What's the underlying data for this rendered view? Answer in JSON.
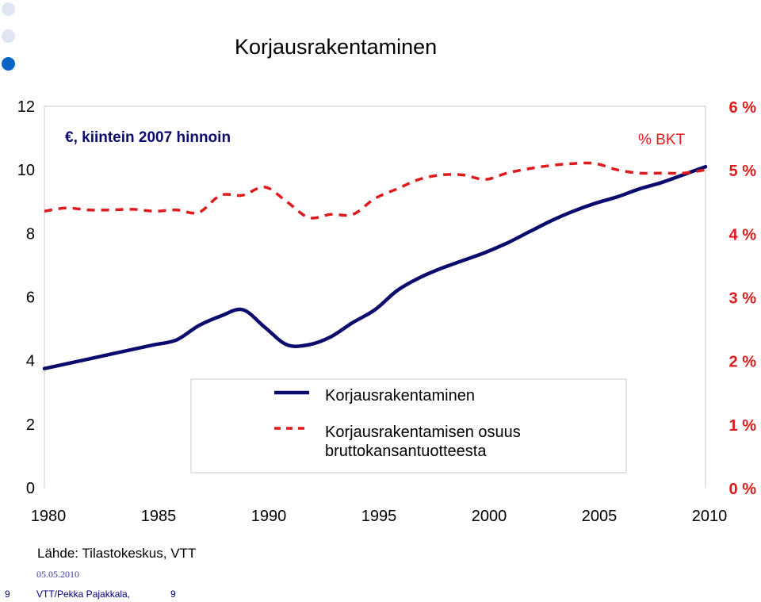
{
  "page": {
    "title": "Korjausrakentaminen",
    "source": "Lähde: Tilastokeskus, VTT",
    "date": "05.05.2010",
    "slide_number": "9",
    "author": "VTT/Pekka Pajakkala,",
    "author_page": "9"
  },
  "colors": {
    "primary_line": "#0b0b6e",
    "secondary_line": "#e0191b",
    "dot_light": "#dfe6f2",
    "dot_dark": "#0a64c8"
  },
  "chart_data": {
    "type": "line",
    "x": [
      1980,
      1981,
      1982,
      1983,
      1984,
      1985,
      1986,
      1987,
      1988,
      1989,
      1990,
      1991,
      1992,
      1993,
      1994,
      1995,
      1996,
      1997,
      1998,
      1999,
      2000,
      2001,
      2002,
      2003,
      2004,
      2005,
      2006,
      2007,
      2008,
      2009,
      2010
    ],
    "xlim": [
      1980,
      2010
    ],
    "x_ticks": [
      "1980",
      "1985",
      "1990",
      "1995",
      "2000",
      "2005",
      "2010"
    ],
    "y_left_ticks": [
      "0",
      "2",
      "4",
      "6",
      "8",
      "10",
      "12"
    ],
    "y_left_lim": [
      0,
      12
    ],
    "y_left_label": "€, kiintein 2007 hinnoin",
    "y_right_ticks": [
      "0 %",
      "1 %",
      "2 %",
      "3 %",
      "4 %",
      "5 %",
      "6 %"
    ],
    "y_right_lim": [
      0,
      6
    ],
    "y_right_label": "% BKT",
    "series": [
      {
        "name": "Korjausrakentaminen",
        "axis": "left",
        "style": "solid",
        "color": "#0b0b6e",
        "values": [
          3.75,
          3.9,
          4.05,
          4.2,
          4.35,
          4.5,
          4.65,
          5.1,
          5.4,
          5.6,
          5.05,
          4.5,
          4.5,
          4.75,
          5.2,
          5.6,
          6.2,
          6.6,
          6.9,
          7.15,
          7.4,
          7.7,
          8.05,
          8.4,
          8.7,
          8.95,
          9.15,
          9.4,
          9.6,
          9.85,
          10.1
        ]
      },
      {
        "name": "Korjausrakentamisen osuus bruttokansantuotteesta",
        "axis": "right",
        "style": "dashed",
        "color": "#e0191b",
        "values": [
          4.35,
          4.4,
          4.37,
          4.37,
          4.38,
          4.35,
          4.37,
          4.33,
          4.6,
          4.6,
          4.73,
          4.5,
          4.25,
          4.3,
          4.3,
          4.55,
          4.7,
          4.85,
          4.92,
          4.92,
          4.85,
          4.95,
          5.02,
          5.07,
          5.1,
          5.1,
          5.0,
          4.95,
          4.95,
          4.95,
          5.0
        ]
      }
    ],
    "legend": {
      "position": "bottom-center",
      "entries": [
        "Korjausrakentaminen",
        "Korjausrakentamisen osuus",
        "bruttokansantuotteesta"
      ]
    },
    "grid": false
  }
}
